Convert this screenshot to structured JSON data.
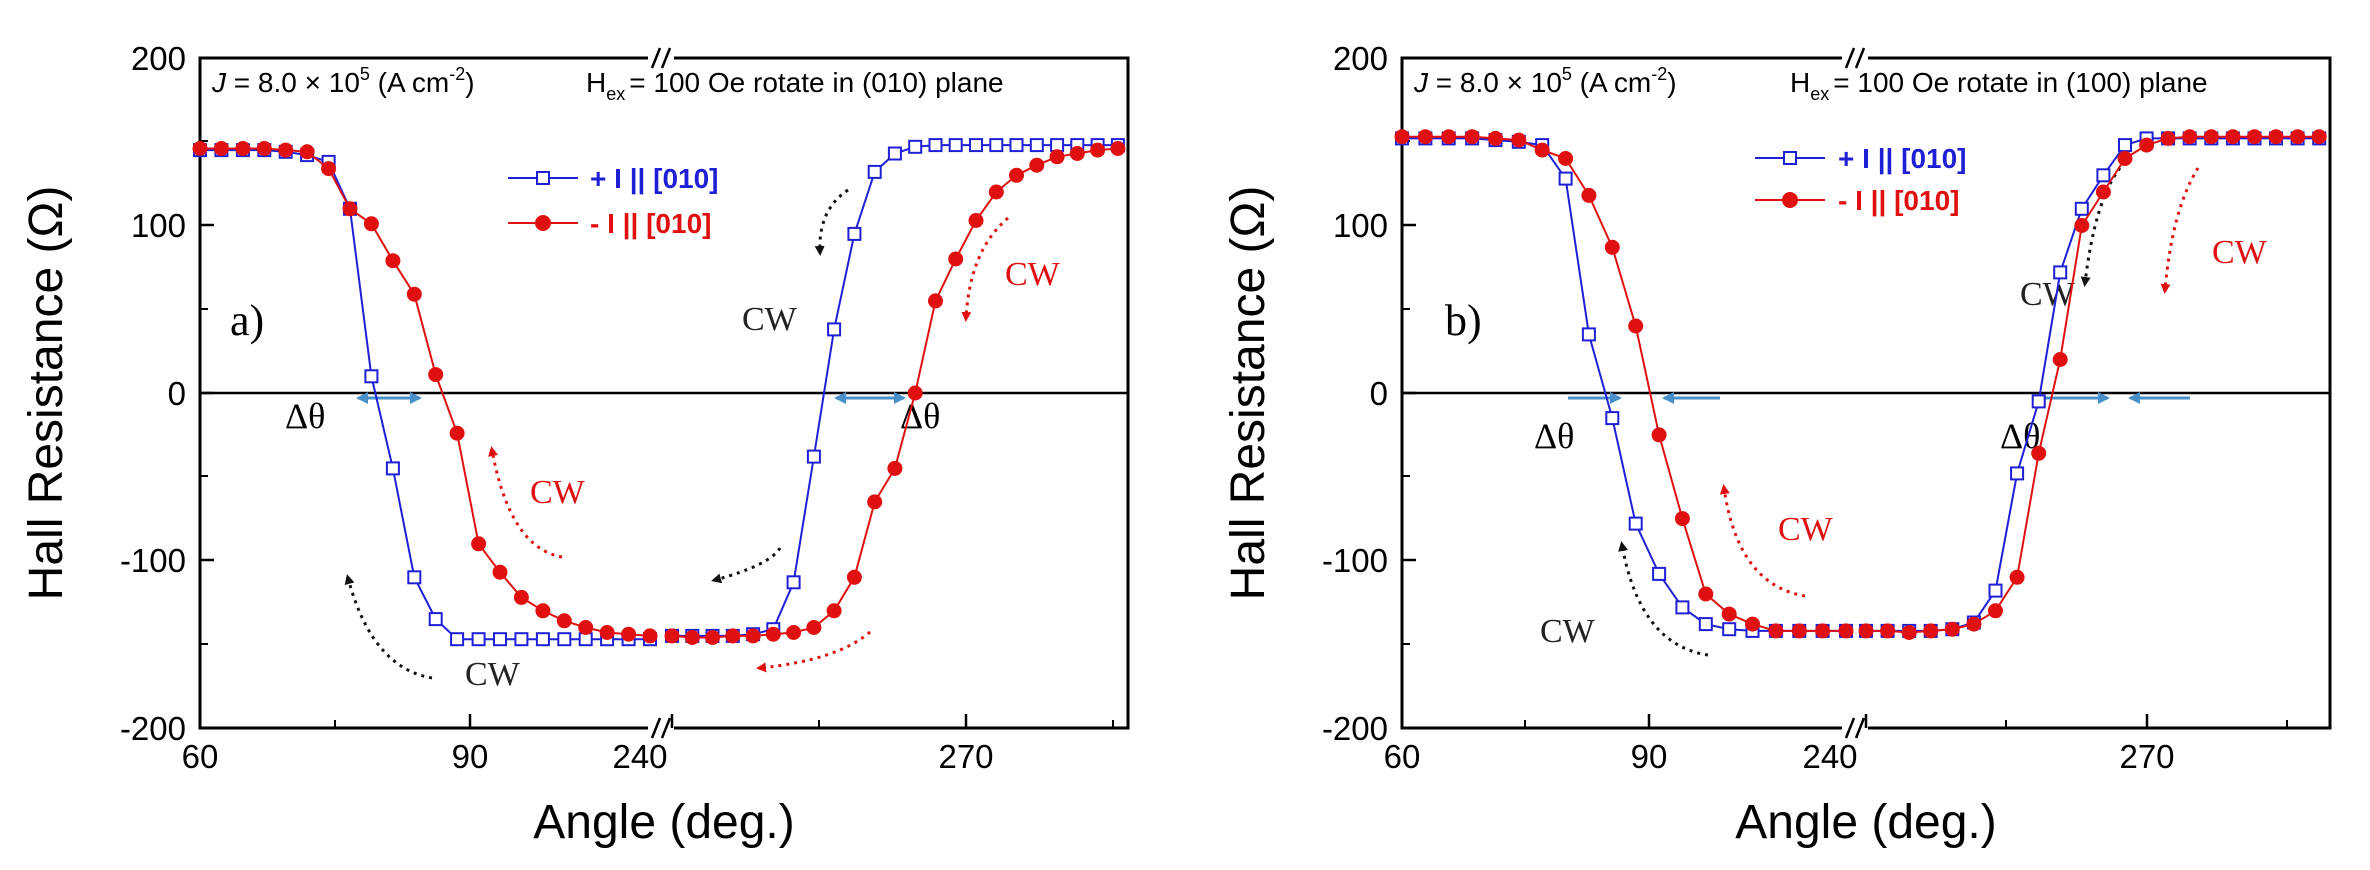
{
  "chart_data": [
    {
      "type": "line",
      "panel_label": "a)",
      "title": "",
      "xlabel": "Angle (deg.)",
      "ylabel": "Hall Resistance (Ω)",
      "ylim": [
        -200,
        200
      ],
      "yticks": [
        "200",
        "100",
        "0",
        "-100",
        "-200"
      ],
      "xticks": [
        "60",
        "90",
        "240",
        "270"
      ],
      "axis_break": "//",
      "x_segments": [
        {
          "range": [
            60,
            102
          ]
        },
        {
          "range": [
            238,
            283
          ]
        }
      ],
      "grid": false,
      "zero_line": true,
      "annotation_j": {
        "prefix": "J",
        "body": " = 8.0 × 10",
        "exp": "5",
        "unit": " (A cm",
        "unit_exp": "-2",
        "close": ")"
      },
      "annotation_h": {
        "prefix": "H",
        "sub": "ex",
        "body": "= 100 Oe rotate in (010) plane"
      },
      "legend": [
        {
          "label": "+ I || [010]",
          "color": "#1f1fd6",
          "marker": "open-square"
        },
        {
          "label": "- I || [010]",
          "color": "#e01010",
          "marker": "filled-circle"
        }
      ],
      "series": [
        {
          "name": "+ I || [010]",
          "color": "#1f1fd6",
          "marker": "open-square",
          "x": [
            60,
            62,
            64,
            66,
            68,
            70,
            72,
            74,
            76,
            78,
            80,
            82,
            84,
            86,
            88,
            90,
            92,
            94,
            96,
            98,
            100,
            102,
            238,
            240,
            242,
            244,
            246,
            248,
            250,
            252,
            254,
            256,
            258,
            260,
            262,
            264,
            266,
            268,
            270,
            272,
            274,
            276,
            278,
            280,
            282
          ],
          "y": [
            145,
            145,
            145,
            145,
            144,
            142,
            138,
            110,
            10,
            -45,
            -110,
            -135,
            -147,
            -147,
            -147,
            -147,
            -147,
            -147,
            -147,
            -147,
            -147,
            -147,
            -145,
            -145,
            -145,
            -145,
            -144,
            -141,
            -113,
            -38,
            38,
            95,
            132,
            143,
            147,
            148,
            148,
            148,
            148,
            148,
            148,
            148,
            148,
            148,
            148
          ]
        },
        {
          "name": "- I || [010]",
          "color": "#e01010",
          "marker": "filled-circle",
          "x": [
            60,
            62,
            64,
            66,
            68,
            70,
            72,
            74,
            76,
            78,
            80,
            82,
            84,
            86,
            88,
            90,
            92,
            94,
            96,
            98,
            100,
            102,
            238,
            240,
            242,
            244,
            246,
            248,
            250,
            252,
            254,
            256,
            258,
            260,
            262,
            264,
            266,
            268,
            270,
            272,
            274,
            276,
            278,
            280,
            282
          ],
          "y": [
            146,
            146,
            146,
            146,
            145,
            144,
            134,
            110,
            101,
            79,
            59,
            11,
            -24,
            -90,
            -107,
            -122,
            -130,
            -136,
            -140,
            -143,
            -144,
            -145,
            -145,
            -146,
            -146,
            -145,
            -145,
            -144,
            -143,
            -140,
            -130,
            -110,
            -65,
            -45,
            0,
            55,
            80,
            103,
            120,
            130,
            136,
            141,
            143,
            145,
            146
          ]
        }
      ],
      "annotations": [
        {
          "text": "CW",
          "color": "#e01010"
        },
        {
          "text": "CW",
          "color": "#222222"
        },
        {
          "text": "CW",
          "color": "#222222"
        },
        {
          "text": "CW",
          "color": "#e01010"
        },
        {
          "text": "Δθ",
          "color": "#000000"
        },
        {
          "text": "Δθ",
          "color": "#000000"
        }
      ]
    },
    {
      "type": "line",
      "panel_label": "b)",
      "title": "",
      "xlabel": "Angle (deg.)",
      "ylabel": "Hall Resistance (Ω)",
      "ylim": [
        -200,
        200
      ],
      "yticks": [
        "200",
        "100",
        "0",
        "-100",
        "-200"
      ],
      "xticks": [
        "60",
        "90",
        "240",
        "270"
      ],
      "axis_break": "//",
      "x_segments": [
        {
          "range": [
            60,
            98
          ]
        },
        {
          "range": [
            238,
            281
          ]
        }
      ],
      "grid": false,
      "zero_line": true,
      "annotation_j": {
        "prefix": "J",
        "body": " = 8.0 × 10",
        "exp": "5",
        "unit": " (A cm",
        "unit_exp": "-2",
        "close": ")"
      },
      "annotation_h": {
        "prefix": "H",
        "sub": "ex",
        "body": "= 100 Oe rotate in (100) plane"
      },
      "legend": [
        {
          "label": "+ I || [010]",
          "color": "#1f1fd6",
          "marker": "open-square"
        },
        {
          "label": "- I || [010]",
          "color": "#e01010",
          "marker": "filled-circle"
        }
      ],
      "series": [
        {
          "name": "+ I || [010]",
          "color": "#1f1fd6",
          "marker": "open-square",
          "x": [
            60,
            62,
            64,
            66,
            68,
            70,
            72,
            74,
            76,
            78,
            80,
            82,
            84,
            86,
            88,
            90,
            92,
            94,
            96,
            98,
            238,
            240,
            242,
            244,
            246,
            248,
            250,
            252,
            254,
            256,
            258,
            260,
            262,
            264,
            266,
            268,
            270,
            272,
            274,
            276,
            278,
            280
          ],
          "y": [
            152,
            152,
            152,
            152,
            151,
            150,
            148,
            128,
            35,
            -15,
            -78,
            -108,
            -128,
            -138,
            -141,
            -142,
            -142,
            -142,
            -142,
            -142,
            -142,
            -142,
            -142,
            -142,
            -141,
            -137,
            -118,
            -48,
            -5,
            72,
            110,
            130,
            148,
            152,
            152,
            152,
            152,
            152,
            152,
            152,
            152,
            152
          ]
        },
        {
          "name": "- I || [010]",
          "color": "#e01010",
          "marker": "filled-circle",
          "x": [
            60,
            62,
            64,
            66,
            68,
            70,
            72,
            74,
            76,
            78,
            80,
            82,
            84,
            86,
            88,
            90,
            92,
            94,
            96,
            98,
            238,
            240,
            242,
            244,
            246,
            248,
            250,
            252,
            254,
            256,
            258,
            260,
            262,
            264,
            266,
            268,
            270,
            272,
            274,
            276,
            278,
            280
          ],
          "y": [
            153,
            153,
            153,
            153,
            152,
            151,
            145,
            140,
            118,
            87,
            40,
            -25,
            -75,
            -120,
            -132,
            -138,
            -142,
            -142,
            -142,
            -142,
            -142,
            -142,
            -143,
            -142,
            -141,
            -138,
            -130,
            -110,
            -36,
            20,
            100,
            120,
            140,
            148,
            152,
            153,
            153,
            153,
            153,
            153,
            153,
            153
          ]
        }
      ],
      "annotations": [
        {
          "text": "CW",
          "color": "#e01010"
        },
        {
          "text": "CW",
          "color": "#222222"
        },
        {
          "text": "CW",
          "color": "#222222"
        },
        {
          "text": "CW",
          "color": "#e01010"
        },
        {
          "text": "Δθ",
          "color": "#000000"
        },
        {
          "text": "Δθ",
          "color": "#000000"
        }
      ]
    }
  ]
}
